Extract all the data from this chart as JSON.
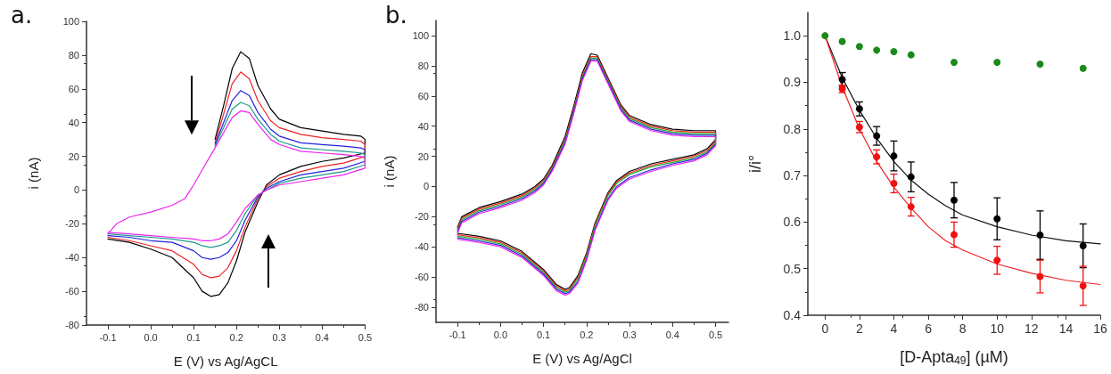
{
  "chart_data": [
    {
      "type": "line",
      "annotations": [
        "a."
      ],
      "xlabel": "E (V) vs Ag/AgCL",
      "ylabel": "i (nA)",
      "xlim": [
        -0.15,
        0.5
      ],
      "xticks": [
        -0.1,
        {
          "value": 0,
          "label": "0.0"
        },
        0.1,
        0.2,
        0.3,
        0.4,
        0.5
      ],
      "ylim": [
        -80,
        100
      ],
      "yticks": [
        -80,
        -60,
        -40,
        -20,
        0,
        20,
        40,
        60,
        80,
        100
      ],
      "grid": false,
      "marker": "none",
      "line_style": "solid",
      "series": [
        {
          "color": "#000000",
          "x": [
            0.15,
            0.17,
            0.19,
            0.21,
            0.23,
            0.25,
            0.28,
            0.3,
            0.35,
            0.4,
            0.45,
            0.49,
            0.5,
            0.5,
            0.45,
            0.4,
            0.35,
            0.3,
            0.27,
            0.25,
            0.22,
            0.2,
            0.18,
            0.16,
            0.14,
            0.12,
            0.1,
            0.05,
            0,
            -0.05,
            -0.1
          ],
          "values": [
            30,
            50,
            72,
            82,
            78,
            62,
            48,
            42,
            37,
            35,
            33,
            32,
            30,
            22,
            19,
            17,
            14,
            9,
            3,
            -7,
            -25,
            -42,
            -55,
            -62,
            -63,
            -60,
            -52,
            -40,
            -35,
            -31,
            -29
          ]
        },
        {
          "color": "#ee2222",
          "x": [
            0.15,
            0.17,
            0.19,
            0.21,
            0.23,
            0.25,
            0.28,
            0.3,
            0.35,
            0.4,
            0.45,
            0.49,
            0.5,
            0.5,
            0.45,
            0.4,
            0.35,
            0.3,
            0.27,
            0.25,
            0.22,
            0.2,
            0.18,
            0.16,
            0.14,
            0.12,
            0.1,
            0.05,
            0,
            -0.05,
            -0.1
          ],
          "values": [
            28,
            45,
            63,
            70,
            66,
            53,
            41,
            37,
            33,
            31,
            30,
            29,
            27,
            20,
            16,
            14,
            11,
            7,
            2,
            -5,
            -22,
            -36,
            -46,
            -51,
            -52,
            -50,
            -44,
            -36,
            -33,
            -30,
            -28
          ]
        },
        {
          "color": "#2222dd",
          "x": [
            0.15,
            0.17,
            0.19,
            0.21,
            0.23,
            0.25,
            0.28,
            0.3,
            0.35,
            0.4,
            0.45,
            0.49,
            0.5,
            0.5,
            0.45,
            0.4,
            0.35,
            0.3,
            0.27,
            0.25,
            0.22,
            0.2,
            0.18,
            0.16,
            0.14,
            0.12,
            0.1,
            0.05,
            0,
            -0.05,
            -0.1
          ],
          "values": [
            27,
            40,
            53,
            59,
            56,
            46,
            36,
            32,
            28,
            27,
            26,
            25,
            24,
            17,
            13,
            11,
            9,
            5,
            1,
            -4,
            -18,
            -30,
            -37,
            -40,
            -41,
            -40,
            -36,
            -31,
            -30,
            -28,
            -27
          ]
        },
        {
          "color": "#1a9a8a",
          "x": [
            0.15,
            0.17,
            0.19,
            0.21,
            0.23,
            0.25,
            0.28,
            0.3,
            0.35,
            0.4,
            0.45,
            0.49,
            0.5,
            0.5,
            0.45,
            0.4,
            0.35,
            0.3,
            0.27,
            0.25,
            0.22,
            0.2,
            0.18,
            0.16,
            0.14,
            0.12,
            0.1,
            0.05,
            0,
            -0.05,
            -0.1
          ],
          "values": [
            26,
            37,
            48,
            52,
            50,
            42,
            33,
            29,
            25,
            24,
            23,
            22,
            21,
            15,
            11,
            9,
            7,
            4,
            0,
            -3,
            -14,
            -24,
            -31,
            -33,
            -34,
            -33,
            -31,
            -29,
            -28,
            -27,
            -26
          ]
        },
        {
          "color": "#ee22ee",
          "x": [
            -0.1,
            -0.08,
            -0.05,
            0,
            0.05,
            0.08,
            0.1,
            0.12,
            0.15,
            0.17,
            0.19,
            0.21,
            0.23,
            0.25,
            0.28,
            0.3,
            0.35,
            0.4,
            0.45,
            0.49,
            0.5,
            0.5,
            0.45,
            0.4,
            0.35,
            0.3,
            0.27,
            0.25,
            0.22,
            0.2,
            0.18,
            0.16,
            0.14,
            0.12,
            0.1,
            0.05,
            0,
            -0.05,
            -0.1
          ],
          "values": [
            -26,
            -20,
            -16,
            -13,
            -9,
            -5,
            3,
            12,
            25,
            34,
            43,
            47,
            46,
            39,
            30,
            27,
            23,
            22,
            21,
            20,
            19,
            13,
            9,
            7,
            5,
            3,
            0,
            -3,
            -11,
            -19,
            -26,
            -29,
            -30,
            -30,
            -29,
            -28,
            -27,
            -26,
            -25
          ]
        }
      ]
    },
    {
      "type": "line",
      "annotations": [
        "b."
      ],
      "xlabel": "E (V) vs Ag/AgCl",
      "ylabel": "i (nA)",
      "xlim": [
        -0.15,
        0.53
      ],
      "xticks": [
        -0.1,
        {
          "value": 0,
          "label": "0.0"
        },
        0.1,
        0.2,
        0.3,
        0.4,
        0.5
      ],
      "ylim": [
        -90,
        110
      ],
      "yticks": [
        -80,
        -60,
        -40,
        -20,
        0,
        20,
        40,
        60,
        80,
        100
      ],
      "grid": false,
      "marker": "none",
      "line_style": "solid",
      "series": [
        {
          "color": "#000000",
          "x": [
            -0.1,
            -0.09,
            -0.05,
            0,
            0.05,
            0.08,
            0.1,
            0.12,
            0.15,
            0.17,
            0.19,
            0.21,
            0.225,
            0.25,
            0.28,
            0.3,
            0.35,
            0.4,
            0.45,
            0.5,
            0.5,
            0.48,
            0.45,
            0.4,
            0.35,
            0.3,
            0.27,
            0.25,
            0.22,
            0.2,
            0.18,
            0.16,
            0.15,
            0.13,
            0.1,
            0.05,
            0,
            -0.05,
            -0.1
          ],
          "values": [
            -27,
            -20,
            -14,
            -10,
            -5,
            0,
            5,
            14,
            33,
            53,
            75,
            88,
            87,
            72,
            54,
            47,
            41,
            38,
            37,
            37,
            31,
            25,
            21,
            18,
            15,
            10,
            4,
            -4,
            -24,
            -44,
            -59,
            -67,
            -68,
            -65,
            -55,
            -43,
            -36,
            -33,
            -31
          ]
        },
        {
          "color": "#ee2222",
          "x": [
            -0.1,
            -0.09,
            -0.05,
            0,
            0.05,
            0.08,
            0.1,
            0.12,
            0.15,
            0.17,
            0.19,
            0.21,
            0.225,
            0.25,
            0.28,
            0.3,
            0.35,
            0.4,
            0.45,
            0.5,
            0.5,
            0.48,
            0.45,
            0.4,
            0.35,
            0.3,
            0.27,
            0.25,
            0.22,
            0.2,
            0.18,
            0.16,
            0.15,
            0.13,
            0.1,
            0.05,
            0,
            -0.05,
            -0.1
          ],
          "values": [
            -28,
            -21,
            -15,
            -11,
            -6,
            -1,
            4,
            13,
            31,
            51,
            73,
            86,
            86,
            71,
            53,
            46,
            40,
            37,
            36,
            36,
            30,
            24,
            20,
            17,
            14,
            9,
            3,
            -5,
            -25,
            -45,
            -60,
            -68,
            -69,
            -66,
            -56,
            -44,
            -37,
            -34,
            -32
          ]
        },
        {
          "color": "#22aa22",
          "x": [
            -0.1,
            -0.09,
            -0.05,
            0,
            0.05,
            0.08,
            0.1,
            0.12,
            0.15,
            0.17,
            0.19,
            0.21,
            0.225,
            0.25,
            0.28,
            0.3,
            0.35,
            0.4,
            0.45,
            0.5,
            0.5,
            0.48,
            0.45,
            0.4,
            0.35,
            0.3,
            0.27,
            0.25,
            0.22,
            0.2,
            0.18,
            0.16,
            0.15,
            0.13,
            0.1,
            0.05,
            0,
            -0.05,
            -0.1
          ],
          "values": [
            -29,
            -22,
            -16,
            -12,
            -7,
            -2,
            3,
            12,
            30,
            50,
            72,
            85,
            85,
            70,
            52,
            45,
            39,
            36,
            35,
            35,
            29,
            23,
            19,
            16,
            13,
            8,
            2,
            -6,
            -26,
            -46,
            -61,
            -69,
            -70,
            -67,
            -57,
            -45,
            -38,
            -35,
            -33
          ]
        },
        {
          "color": "#2222dd",
          "x": [
            -0.1,
            -0.09,
            -0.05,
            0,
            0.05,
            0.08,
            0.1,
            0.12,
            0.15,
            0.17,
            0.19,
            0.21,
            0.225,
            0.25,
            0.28,
            0.3,
            0.35,
            0.4,
            0.45,
            0.5,
            0.5,
            0.48,
            0.45,
            0.4,
            0.35,
            0.3,
            0.27,
            0.25,
            0.22,
            0.2,
            0.18,
            0.16,
            0.15,
            0.13,
            0.1,
            0.05,
            0,
            -0.05,
            -0.1
          ],
          "values": [
            -30,
            -23,
            -17,
            -13,
            -8,
            -3,
            2,
            11,
            29,
            49,
            71,
            84,
            84,
            69,
            51,
            44,
            38,
            35,
            34,
            34,
            28,
            22,
            18,
            15,
            11,
            6,
            0,
            -8,
            -28,
            -48,
            -63,
            -70,
            -71,
            -68,
            -58,
            -46,
            -39,
            -36,
            -34
          ]
        },
        {
          "color": "#ee22ee",
          "x": [
            -0.1,
            -0.09,
            -0.05,
            0,
            0.05,
            0.08,
            0.1,
            0.12,
            0.15,
            0.17,
            0.19,
            0.21,
            0.225,
            0.25,
            0.28,
            0.3,
            0.35,
            0.4,
            0.45,
            0.5,
            0.5,
            0.48,
            0.45,
            0.4,
            0.35,
            0.3,
            0.27,
            0.25,
            0.22,
            0.2,
            0.18,
            0.16,
            0.15,
            0.13,
            0.1,
            0.05,
            0,
            -0.05,
            -0.1
          ],
          "values": [
            -31,
            -24,
            -18,
            -14,
            -9,
            -4,
            1,
            10,
            28,
            48,
            70,
            83,
            83,
            68,
            50,
            43,
            37,
            34,
            33,
            33,
            27,
            21,
            17,
            14,
            10,
            5,
            -1,
            -9,
            -29,
            -49,
            -64,
            -71,
            -72,
            -69,
            -59,
            -47,
            -40,
            -37,
            -35
          ]
        }
      ]
    },
    {
      "type": "scatter",
      "xlabel": "[D-Apta$_{49}$] (µM)",
      "ylabel": "i/i°",
      "xlim": [
        -1,
        16
      ],
      "xticks": [
        0,
        2,
        4,
        6,
        8,
        10,
        12,
        14,
        16
      ],
      "ylim": [
        0.4,
        1.05
      ],
      "yticks": [
        0.4,
        0.5,
        0.6,
        0.7,
        0.8,
        0.9,
        {
          "value": 1,
          "label": "1.0"
        }
      ],
      "grid": false,
      "marker": "circle",
      "series": [
        {
          "type": "line",
          "marker": "none",
          "color": "#111111",
          "x": [
            0,
            1,
            2,
            3,
            4,
            5,
            6,
            7,
            8,
            10,
            12,
            14,
            16
          ],
          "values": [
            1.0,
            0.91,
            0.84,
            0.78,
            0.73,
            0.69,
            0.66,
            0.635,
            0.615,
            0.59,
            0.572,
            0.56,
            0.553
          ]
        },
        {
          "type": "line",
          "marker": "none",
          "color": "#ee2222",
          "x": [
            0,
            1,
            2,
            3,
            4,
            5,
            6,
            7,
            8,
            10,
            12,
            14,
            16
          ],
          "values": [
            1.0,
            0.89,
            0.8,
            0.73,
            0.675,
            0.63,
            0.59,
            0.56,
            0.54,
            0.51,
            0.49,
            0.475,
            0.466
          ]
        },
        {
          "color": "#000000",
          "x": [
            1,
            2,
            3,
            4,
            5,
            7.5,
            10,
            12.5,
            15
          ],
          "values": [
            0.906,
            0.843,
            0.785,
            0.742,
            0.697,
            0.647,
            0.607,
            0.572,
            0.549
          ],
          "errors": [
            0.015,
            0.015,
            0.02,
            0.032,
            0.032,
            0.038,
            0.045,
            0.052,
            0.047
          ]
        },
        {
          "color": "#ee1111",
          "x": [
            1,
            2,
            3,
            4,
            5,
            7.5,
            10,
            12.5,
            15
          ],
          "values": [
            0.886,
            0.804,
            0.74,
            0.683,
            0.633,
            0.573,
            0.518,
            0.483,
            0.463
          ],
          "errors": [
            0.008,
            0.012,
            0.015,
            0.02,
            0.02,
            0.027,
            0.03,
            0.035,
            0.042
          ]
        },
        {
          "color": "#1a8a1a",
          "x": [
            0,
            1,
            2,
            3,
            4,
            5,
            7.5,
            10,
            12.5,
            15
          ],
          "values": [
            1.0,
            0.988,
            0.977,
            0.969,
            0.966,
            0.959,
            0.943,
            0.943,
            0.939,
            0.93
          ]
        }
      ]
    }
  ]
}
